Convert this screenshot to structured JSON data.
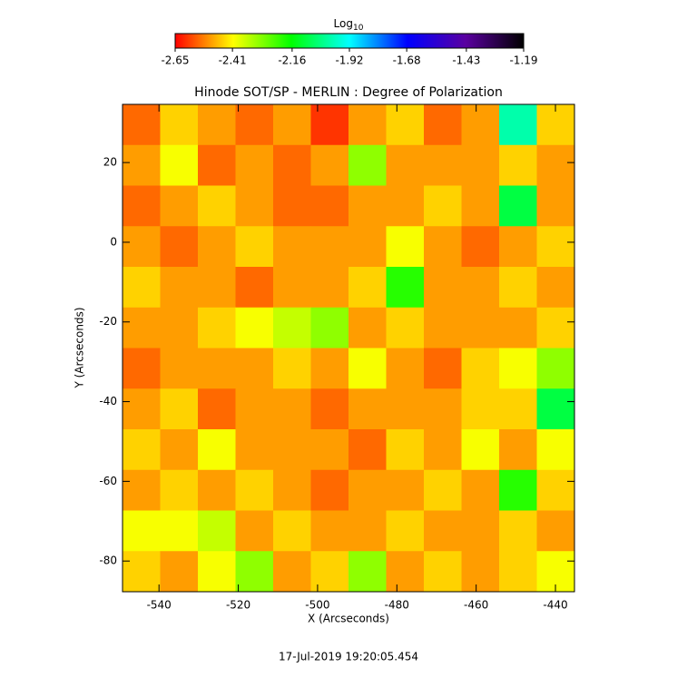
{
  "chart_data": {
    "type": "heatmap",
    "title": "Hinode SOT/SP - MERLIN : Degree of Polarization",
    "x_label": "X (Arcseconds)",
    "y_label": "Y (Arcseconds)",
    "footer": "17-Jul-2019 19:20:05.454",
    "colorbar_label": "Log",
    "colorbar_label_sub": "10",
    "colorbar_lim": [
      -2.65,
      -1.19
    ],
    "colorbar_ticks": [
      -2.65,
      -2.41,
      -2.16,
      -1.92,
      -1.68,
      -1.43,
      -1.19
    ],
    "colormap": [
      "#ff0000",
      "#ffff00",
      "#00ff00",
      "#00ffff",
      "#0000ff",
      "#5a00a0",
      "#000000"
    ],
    "xlim": [
      -549.2,
      -435.2
    ],
    "ylim": [
      -87.7,
      34.6
    ],
    "xticks": [
      -540,
      -520,
      -500,
      -480,
      -460,
      -440
    ],
    "yticks": [
      20,
      0,
      -20,
      -40,
      -60,
      -80
    ],
    "z": [
      [
        -2.55,
        -2.45,
        -2.5,
        -2.55,
        -2.5,
        -2.6,
        -2.5,
        -2.45,
        -2.55,
        -2.5,
        -2.0,
        -2.45
      ],
      [
        -2.5,
        -2.4,
        -2.55,
        -2.5,
        -2.55,
        -2.5,
        -2.3,
        -2.5,
        -2.5,
        -2.5,
        -2.45,
        -2.5
      ],
      [
        -2.55,
        -2.5,
        -2.45,
        -2.5,
        -2.55,
        -2.55,
        -2.5,
        -2.5,
        -2.45,
        -2.5,
        -2.1,
        -2.5
      ],
      [
        -2.5,
        -2.55,
        -2.5,
        -2.45,
        -2.5,
        -2.5,
        -2.5,
        -2.4,
        -2.5,
        -2.55,
        -2.5,
        -2.45
      ],
      [
        -2.45,
        -2.5,
        -2.5,
        -2.55,
        -2.5,
        -2.5,
        -2.45,
        -2.2,
        -2.5,
        -2.5,
        -2.45,
        -2.5
      ],
      [
        -2.5,
        -2.5,
        -2.45,
        -2.4,
        -2.35,
        -2.3,
        -2.5,
        -2.45,
        -2.5,
        -2.5,
        -2.5,
        -2.45
      ],
      [
        -2.55,
        -2.5,
        -2.5,
        -2.5,
        -2.45,
        -2.5,
        -2.4,
        -2.5,
        -2.55,
        -2.45,
        -2.4,
        -2.3
      ],
      [
        -2.5,
        -2.45,
        -2.55,
        -2.5,
        -2.5,
        -2.55,
        -2.5,
        -2.5,
        -2.5,
        -2.45,
        -2.45,
        -2.1
      ],
      [
        -2.45,
        -2.5,
        -2.4,
        -2.5,
        -2.5,
        -2.5,
        -2.55,
        -2.45,
        -2.5,
        -2.4,
        -2.5,
        -2.4
      ],
      [
        -2.5,
        -2.45,
        -2.5,
        -2.45,
        -2.5,
        -2.55,
        -2.5,
        -2.5,
        -2.45,
        -2.5,
        -2.2,
        -2.45
      ],
      [
        -2.4,
        -2.4,
        -2.35,
        -2.5,
        -2.45,
        -2.5,
        -2.5,
        -2.45,
        -2.5,
        -2.5,
        -2.45,
        -2.5
      ],
      [
        -2.45,
        -2.5,
        -2.4,
        -2.3,
        -2.5,
        -2.45,
        -2.3,
        -2.5,
        -2.45,
        -2.5,
        -2.45,
        -2.4
      ]
    ]
  }
}
